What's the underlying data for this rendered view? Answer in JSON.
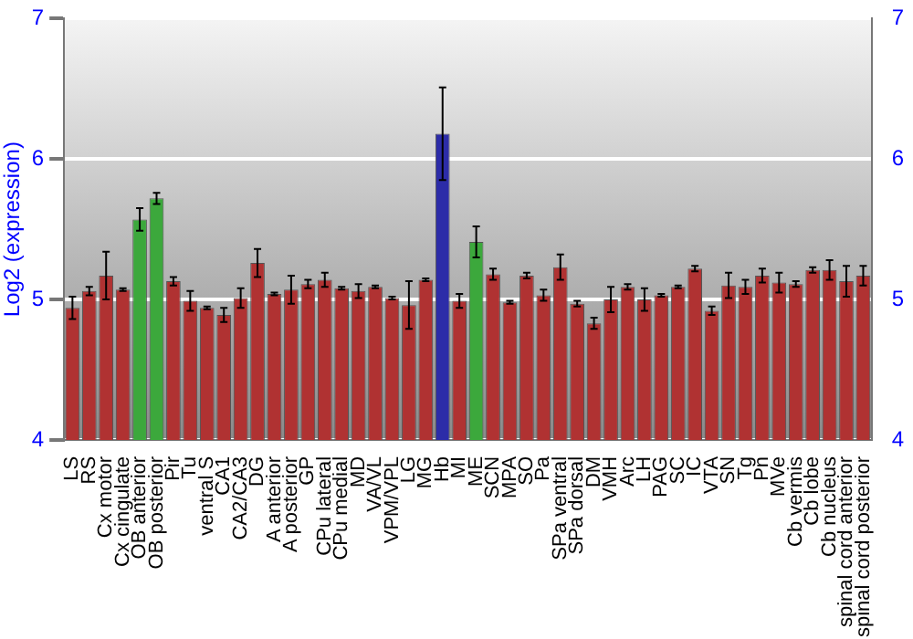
{
  "chart_data": {
    "type": "bar",
    "ylabel": "Log2 (expression)",
    "categories": [
      "LS",
      "RS",
      "Cx motor",
      "Cx cingulate",
      "OB anterior",
      "OB posterior",
      "Pir",
      "Tu",
      "ventral S",
      "CA1",
      "CA2/CA3",
      "DG",
      "A anterior",
      "A posterior",
      "GP",
      "CPu lateral",
      "CPu medial",
      "MD",
      "VA/VL",
      "VPM/VPL",
      "LG",
      "MG",
      "Hb",
      "MI",
      "ME",
      "SCN",
      "MPA",
      "SO",
      "Pa",
      "SPa ventral",
      "SPa dorsal",
      "DM",
      "VMH",
      "Arc",
      "LH",
      "PAG",
      "SC",
      "IC",
      "VTA",
      "SN",
      "Tg",
      "Pn",
      "MVe",
      "Cb vermis",
      "Cb lobe",
      "Cb nucleus",
      "spinal cord anterior",
      "spinal cord posterior"
    ],
    "values": [
      4.94,
      5.06,
      5.17,
      5.07,
      5.57,
      5.72,
      5.13,
      4.99,
      4.94,
      4.89,
      5.01,
      5.26,
      5.04,
      5.07,
      5.11,
      5.14,
      5.08,
      5.06,
      5.09,
      5.01,
      4.96,
      5.14,
      6.18,
      4.99,
      5.41,
      5.18,
      4.98,
      5.17,
      5.03,
      5.23,
      4.97,
      4.83,
      5.0,
      5.09,
      5.0,
      5.03,
      5.09,
      5.22,
      4.92,
      5.1,
      5.09,
      5.17,
      5.12,
      5.11,
      5.21,
      5.21,
      5.13,
      5.17
    ],
    "errors": [
      0.08,
      0.03,
      0.17,
      0.01,
      0.08,
      0.04,
      0.03,
      0.07,
      0.01,
      0.05,
      0.07,
      0.1,
      0.01,
      0.1,
      0.03,
      0.05,
      0.01,
      0.05,
      0.01,
      0.01,
      0.17,
      0.01,
      0.33,
      0.05,
      0.11,
      0.04,
      0.01,
      0.02,
      0.04,
      0.09,
      0.02,
      0.04,
      0.09,
      0.02,
      0.08,
      0.01,
      0.01,
      0.02,
      0.03,
      0.09,
      0.05,
      0.05,
      0.07,
      0.02,
      0.02,
      0.07,
      0.11,
      0.07
    ],
    "colors": [
      "#b03232",
      "#b03232",
      "#b03232",
      "#b03232",
      "#3ca83c",
      "#3ca83c",
      "#b03232",
      "#b03232",
      "#b03232",
      "#b03232",
      "#b03232",
      "#b03232",
      "#b03232",
      "#b03232",
      "#b03232",
      "#b03232",
      "#b03232",
      "#b03232",
      "#b03232",
      "#b03232",
      "#b03232",
      "#b03232",
      "#2c2ca8",
      "#b03232",
      "#3ca83c",
      "#b03232",
      "#b03232",
      "#b03232",
      "#b03232",
      "#b03232",
      "#b03232",
      "#b03232",
      "#b03232",
      "#b03232",
      "#b03232",
      "#b03232",
      "#b03232",
      "#b03232",
      "#b03232",
      "#b03232",
      "#b03232",
      "#b03232",
      "#b03232",
      "#b03232",
      "#b03232",
      "#b03232",
      "#b03232",
      "#b03232"
    ],
    "ylim": [
      4,
      7
    ],
    "yticks": [
      4,
      5,
      6,
      7
    ],
    "y2lim": [
      4,
      7
    ],
    "y2ticks": [
      4,
      5,
      6,
      7
    ],
    "grid": "y",
    "legend": false
  }
}
